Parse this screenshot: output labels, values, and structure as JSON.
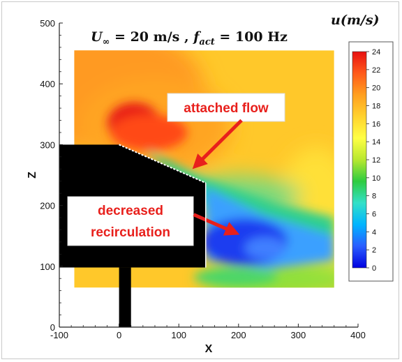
{
  "chart_data": {
    "type": "heatmap",
    "title": "U∞ = 20 m/s , f_act = 100 Hz",
    "title_parts": {
      "u_sym": "U",
      "u_sub": "∞",
      "u_rest": " = 20 m/s , ",
      "f_sym": "f",
      "f_sub": "act",
      "f_rest": " = 100 Hz"
    },
    "xlabel": "X",
    "ylabel": "Z",
    "xlim": [
      -100,
      400
    ],
    "ylim": [
      0,
      500
    ],
    "xticks": [
      -100,
      0,
      100,
      200,
      300,
      400
    ],
    "yticks": [
      0,
      100,
      200,
      300,
      400,
      500
    ],
    "colorbar": {
      "label": "u(m/s)",
      "label_parts": {
        "sym": "u",
        "rest": "(m/s)"
      },
      "range": [
        0,
        24
      ],
      "ticks": [
        0,
        2,
        4,
        6,
        8,
        10,
        12,
        14,
        16,
        18,
        20,
        22,
        24
      ],
      "colormap": [
        "#0000e0",
        "#2a5dff",
        "#00b4ff",
        "#33e0c8",
        "#2ecc40",
        "#b8e830",
        "#ffff44",
        "#ffd22e",
        "#ff9f1f",
        "#ff5a1a",
        "#e81010"
      ]
    },
    "measurement_domain": {
      "x": [
        -75,
        360
      ],
      "z": [
        65,
        455
      ]
    },
    "body": {
      "polygon": [
        [
          -100,
          300
        ],
        [
          0,
          300
        ],
        [
          145,
          237
        ],
        [
          145,
          98
        ],
        [
          -100,
          98
        ]
      ],
      "strut_x": [
        0,
        20
      ],
      "color": "#000000"
    },
    "annotations": [
      {
        "text": "attached flow",
        "arrow_from": [
          205,
          340
        ],
        "arrow_to": [
          128,
          265
        ]
      },
      {
        "text": "decreased recirculation",
        "line1": "decreased",
        "line2": "recirculation",
        "arrow_from": [
          125,
          185
        ],
        "arrow_to": [
          195,
          155
        ]
      }
    ],
    "grid": false
  }
}
